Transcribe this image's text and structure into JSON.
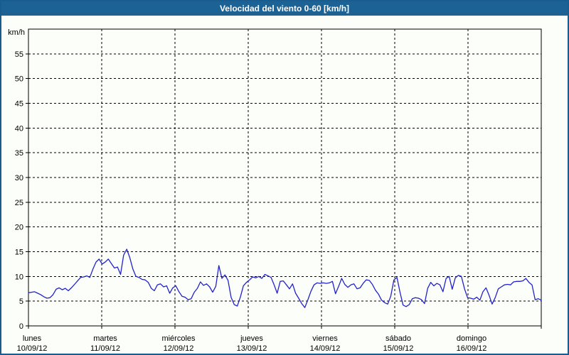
{
  "window": {
    "title": "Velocidad del viento 0-60 [km/h]"
  },
  "colors": {
    "titlebar_bg": "#1d6295",
    "titlebar_text": "#ffffff",
    "frame_border": "#1b5c8e",
    "chart_bg": "#fcfefa",
    "plot_border": "#000000",
    "grid": "#000000",
    "axis_text": "#000000",
    "series_line": "#2222cb"
  },
  "chart_data": {
    "type": "line",
    "title": "Velocidad del viento 0-60 [km/h]",
    "ylabel": "km/h",
    "ylim": [
      0,
      60
    ],
    "ytick_step": 5,
    "ytick_labels": [
      "0",
      "5",
      "10",
      "15",
      "20",
      "25",
      "30",
      "35",
      "40",
      "45",
      "50",
      "55"
    ],
    "grid": "dashed",
    "legend": "none",
    "x_days": [
      {
        "name": "lunes",
        "date": "10/09/12"
      },
      {
        "name": "martes",
        "date": "11/09/12"
      },
      {
        "name": "miércoles",
        "date": "12/09/12"
      },
      {
        "name": "jueves",
        "date": "13/09/12"
      },
      {
        "name": "viernes",
        "date": "14/09/12"
      },
      {
        "name": "sábado",
        "date": "15/09/12"
      },
      {
        "name": "domingo",
        "date": "16/09/12"
      }
    ],
    "series": [
      {
        "name": "Velocidad del viento",
        "unit": "km/h",
        "samples_per_day": 24,
        "values": [
          6.7,
          6.8,
          6.9,
          6.6,
          6.3,
          5.9,
          5.6,
          5.7,
          6.3,
          7.4,
          7.7,
          7.3,
          7.6,
          7.1,
          7.7,
          8.4,
          9.1,
          9.8,
          9.9,
          10.1,
          9.8,
          11.5,
          12.9,
          13.5,
          12.5,
          12.9,
          13.5,
          12.6,
          11.7,
          11.9,
          10.4,
          14.3,
          15.5,
          13.8,
          11.5,
          10.0,
          9.8,
          9.4,
          9.3,
          8.8,
          7.6,
          7.1,
          8.3,
          8.5,
          7.9,
          8.1,
          6.6,
          7.7,
          8.1,
          6.9,
          6.0,
          5.8,
          5.3,
          5.5,
          6.8,
          7.6,
          8.9,
          8.2,
          8.5,
          7.9,
          6.8,
          8.0,
          12.2,
          9.6,
          10.3,
          9.2,
          5.8,
          4.3,
          4.0,
          5.8,
          8.1,
          8.8,
          9.3,
          9.9,
          9.7,
          10.0,
          9.6,
          10.4,
          10.1,
          9.8,
          8.3,
          6.6,
          9.0,
          9.1,
          8.3,
          7.5,
          8.5,
          6.6,
          5.6,
          4.5,
          3.7,
          5.3,
          7.0,
          8.3,
          8.7,
          8.6,
          8.7,
          8.6,
          8.7,
          9.0,
          6.5,
          8.0,
          9.6,
          8.4,
          7.8,
          8.3,
          8.5,
          7.5,
          7.7,
          8.6,
          9.3,
          9.2,
          8.4,
          7.2,
          6.4,
          5.2,
          4.7,
          4.4,
          6.0,
          9.3,
          9.8,
          6.8,
          4.2,
          3.9,
          4.3,
          5.5,
          5.7,
          5.6,
          5.3,
          4.5,
          7.6,
          8.8,
          8.1,
          8.6,
          8.3,
          6.9,
          9.6,
          10.0,
          7.4,
          9.7,
          10.2,
          10.0,
          7.5,
          5.7,
          5.6,
          5.4,
          5.8,
          5.2,
          6.9,
          7.7,
          6.2,
          4.4,
          5.7,
          7.5,
          7.9,
          8.3,
          8.4,
          8.3,
          8.9,
          9.0,
          9.0,
          9.1,
          9.6,
          8.8,
          8.3,
          5.3,
          5.5,
          5.2
        ]
      }
    ]
  }
}
